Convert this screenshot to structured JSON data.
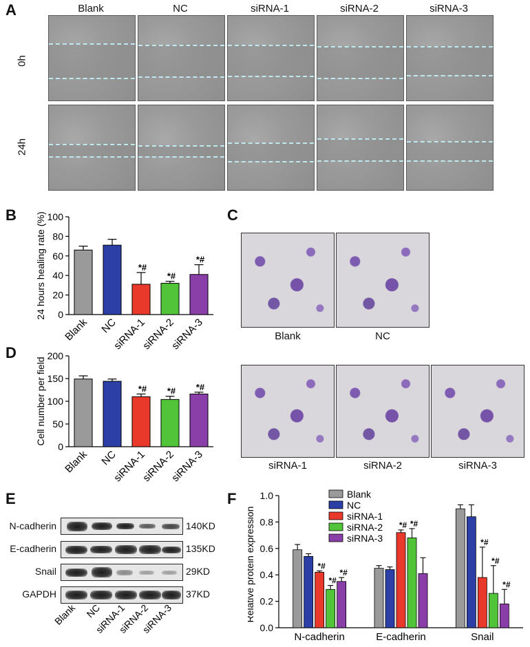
{
  "panelA": {
    "letter": "A",
    "columns": [
      "Blank",
      "NC",
      "siRNA-1",
      "siRNA-2",
      "siRNA-3"
    ],
    "rows": [
      "0h",
      "24h"
    ]
  },
  "panelB": {
    "letter": "B",
    "ylabel": "24 hours healing rate (%)"
  },
  "panelC": {
    "letter": "C",
    "labels": [
      "Blank",
      "NC",
      "siRNA-1",
      "siRNA-2",
      "siRNA-3"
    ]
  },
  "panelD": {
    "letter": "D",
    "ylabel": "Cell number per field"
  },
  "panelE": {
    "letter": "E",
    "proteins": [
      "N-cadherin",
      "E-cadherin",
      "Snail",
      "GAPDH"
    ],
    "sizes": [
      "140KD",
      "135KD",
      "29KD",
      "37KD"
    ],
    "lanes": [
      "Blank",
      "NC",
      "siRNA-1",
      "siRNA-2",
      "siRNA-3"
    ]
  },
  "panelF": {
    "letter": "F",
    "ylabel": "Relative protein expression"
  },
  "colors": {
    "Blank": "#9a9a9a",
    "NC": "#2b3fa6",
    "siRNA-1": "#e8392b",
    "siRNA-2": "#52c43a",
    "siRNA-3": "#8a3fa8"
  },
  "chart_data": [
    {
      "id": "B",
      "type": "bar",
      "categories": [
        "Blank",
        "NC",
        "siRNA-1",
        "siRNA-2",
        "siRNA-3"
      ],
      "values": [
        66,
        71,
        31,
        32,
        41
      ],
      "errors": [
        4,
        6,
        12,
        2,
        10
      ],
      "annotations": [
        "",
        "",
        "*#",
        "*#",
        "*#"
      ],
      "ylim": [
        0,
        100
      ],
      "yticks": [
        0,
        20,
        40,
        60,
        80,
        100
      ],
      "ylabel": "24 hours healing rate (%)"
    },
    {
      "id": "D",
      "type": "bar",
      "categories": [
        "Blank",
        "NC",
        "siRNA-1",
        "siRNA-2",
        "siRNA-3"
      ],
      "values": [
        149,
        144,
        110,
        104,
        116
      ],
      "errors": [
        7,
        5,
        6,
        7,
        4
      ],
      "annotations": [
        "",
        "",
        "*#",
        "*#",
        "*#"
      ],
      "ylim": [
        0,
        200
      ],
      "yticks": [
        0,
        50,
        100,
        150,
        200
      ],
      "ylabel": "Cell number per field"
    },
    {
      "id": "F",
      "type": "bar",
      "categories": [
        "N-cadherin",
        "E-cadherin",
        "Snail"
      ],
      "series": [
        {
          "name": "Blank",
          "values": [
            0.59,
            0.45,
            0.9
          ],
          "errors": [
            0.04,
            0.02,
            0.03
          ],
          "annotations": [
            "",
            "",
            ""
          ]
        },
        {
          "name": "NC",
          "values": [
            0.54,
            0.44,
            0.84
          ],
          "errors": [
            0.02,
            0.02,
            0.09
          ],
          "annotations": [
            "",
            "",
            ""
          ]
        },
        {
          "name": "siRNA-1",
          "values": [
            0.42,
            0.72,
            0.38
          ],
          "errors": [
            0.01,
            0.02,
            0.23
          ],
          "annotations": [
            "*#",
            "*#",
            "*#"
          ]
        },
        {
          "name": "siRNA-2",
          "values": [
            0.29,
            0.68,
            0.26
          ],
          "errors": [
            0.03,
            0.07,
            0.21
          ],
          "annotations": [
            "*#",
            "*#",
            "*#"
          ]
        },
        {
          "name": "siRNA-3",
          "values": [
            0.35,
            0.41,
            0.18
          ],
          "errors": [
            0.03,
            0.12,
            0.11
          ],
          "annotations": [
            "*#",
            "",
            "*#"
          ]
        }
      ],
      "ylim": [
        0,
        1.0
      ],
      "yticks": [
        "0.0",
        "0.2",
        "0.4",
        "0.6",
        "0.8",
        "1.0"
      ],
      "ylabel": "Relative protein expression",
      "legend": "top-left"
    }
  ]
}
